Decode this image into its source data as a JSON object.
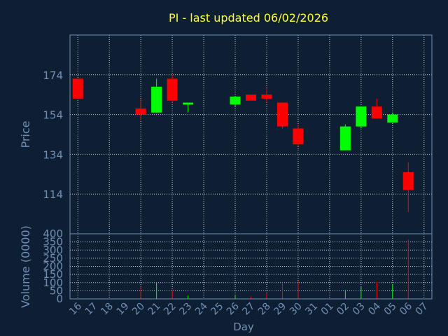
{
  "colors": {
    "background": "#0f1f33",
    "title": "#ffff33",
    "axis_text": "#6f8fb5",
    "frame": "#6f8fb5",
    "grid": "#c8d0dc",
    "up": "#00ff00",
    "down": "#ff0000"
  },
  "chart_data": [
    {
      "type": "candlestick",
      "title": "PI - last updated 06/02/2026",
      "ylabel": "Price",
      "ylim": [
        94,
        194
      ],
      "yticks": [
        114,
        134,
        154,
        174
      ],
      "grid": true,
      "x": [
        "16",
        "17",
        "18",
        "19",
        "20",
        "21",
        "22",
        "23",
        "24",
        "25",
        "26",
        "27",
        "28",
        "29",
        "30",
        "31",
        "01",
        "02",
        "03",
        "04",
        "05",
        "06",
        "07"
      ],
      "candles": [
        {
          "x": "16",
          "open": 172,
          "high": 172,
          "low": 162,
          "close": 162
        },
        {
          "x": "20",
          "open": 157,
          "high": 162,
          "low": 151,
          "close": 154
        },
        {
          "x": "21",
          "open": 155,
          "high": 172,
          "low": 155,
          "close": 168
        },
        {
          "x": "22",
          "open": 172,
          "high": 174,
          "low": 160,
          "close": 161
        },
        {
          "x": "23",
          "open": 159,
          "high": 160,
          "low": 155,
          "close": 160
        },
        {
          "x": "26",
          "open": 159,
          "high": 163,
          "low": 158,
          "close": 163
        },
        {
          "x": "27",
          "open": 164,
          "high": 164,
          "low": 161,
          "close": 161
        },
        {
          "x": "28",
          "open": 164,
          "high": 167,
          "low": 160,
          "close": 162
        },
        {
          "x": "29",
          "open": 160,
          "high": 160,
          "low": 147,
          "close": 148
        },
        {
          "x": "30",
          "open": 147,
          "high": 149,
          "low": 138,
          "close": 139
        },
        {
          "x": "02",
          "open": 136,
          "high": 149,
          "low": 136,
          "close": 148
        },
        {
          "x": "03",
          "open": 148,
          "high": 158,
          "low": 147,
          "close": 158
        },
        {
          "x": "04",
          "open": 158,
          "high": 162,
          "low": 152,
          "close": 152
        },
        {
          "x": "05",
          "open": 150,
          "high": 155,
          "low": 150,
          "close": 154
        },
        {
          "x": "06",
          "open": 125,
          "high": 130,
          "low": 105,
          "close": 116
        }
      ]
    },
    {
      "type": "bar",
      "ylabel": "Volume (0000)",
      "xlabel": "Day",
      "ylim": [
        0,
        400
      ],
      "yticks": [
        0,
        50,
        100,
        150,
        200,
        250,
        300,
        350,
        400
      ],
      "grid": true,
      "x": [
        "16",
        "17",
        "18",
        "19",
        "20",
        "21",
        "22",
        "23",
        "24",
        "25",
        "26",
        "27",
        "28",
        "29",
        "30",
        "31",
        "01",
        "02",
        "03",
        "04",
        "05",
        "06",
        "07"
      ],
      "bars": [
        {
          "x": "20",
          "value": 75,
          "dir": "down"
        },
        {
          "x": "21",
          "value": 100,
          "dir": "up"
        },
        {
          "x": "22",
          "value": 55,
          "dir": "down"
        },
        {
          "x": "23",
          "value": 20,
          "dir": "up"
        },
        {
          "x": "26",
          "value": 20,
          "dir": "up"
        },
        {
          "x": "27",
          "value": 15,
          "dir": "down"
        },
        {
          "x": "28",
          "value": 35,
          "dir": "down"
        },
        {
          "x": "29",
          "value": 100,
          "dir": "down"
        },
        {
          "x": "30",
          "value": 110,
          "dir": "down"
        },
        {
          "x": "02",
          "value": 55,
          "dir": "up"
        },
        {
          "x": "03",
          "value": 75,
          "dir": "up"
        },
        {
          "x": "04",
          "value": 105,
          "dir": "down"
        },
        {
          "x": "05",
          "value": 90,
          "dir": "up"
        },
        {
          "x": "06",
          "value": 365,
          "dir": "down"
        }
      ]
    }
  ]
}
